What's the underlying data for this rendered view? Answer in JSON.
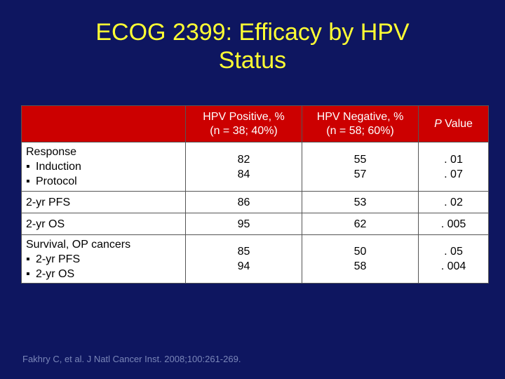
{
  "title": {
    "line1": "ECOG 2399: Efficacy by HPV",
    "line2": "Status"
  },
  "table": {
    "headers": {
      "corner": "",
      "hpv_pos_line1": "HPV Positive, %",
      "hpv_pos_line2": "(n = 38; 40%)",
      "hpv_neg_line1": "HPV Negative, %",
      "hpv_neg_line2": "(n = 58; 60%)",
      "pval_italic": "P",
      "pval_rest": " Value"
    },
    "rows": [
      {
        "label_lines": [
          "Response",
          "Induction",
          "Protocol"
        ],
        "hpv_pos": [
          "82",
          "84"
        ],
        "hpv_neg": [
          "55",
          "57"
        ],
        "pval": [
          ". 01",
          ". 07"
        ]
      },
      {
        "label_lines": [
          "2-yr PFS"
        ],
        "hpv_pos": [
          "86"
        ],
        "hpv_neg": [
          "53"
        ],
        "pval": [
          ". 02"
        ]
      },
      {
        "label_lines": [
          "2-yr OS"
        ],
        "hpv_pos": [
          "95"
        ],
        "hpv_neg": [
          "62"
        ],
        "pval": [
          ". 005"
        ]
      },
      {
        "label_lines": [
          "Survival, OP cancers",
          "2-yr PFS",
          "2-yr OS"
        ],
        "hpv_pos": [
          "85",
          "94"
        ],
        "hpv_neg": [
          "50",
          "58"
        ],
        "pval": [
          ". 05",
          ". 004"
        ]
      }
    ]
  },
  "bullet_glyph": "▪",
  "citation": "Fakhry C, et al. J Natl Cancer Inst. 2008;100:261-269.",
  "colors": {
    "background": "#0e1660",
    "title": "#ffff33",
    "header": "#cc0000",
    "cell": "#ffffff"
  }
}
